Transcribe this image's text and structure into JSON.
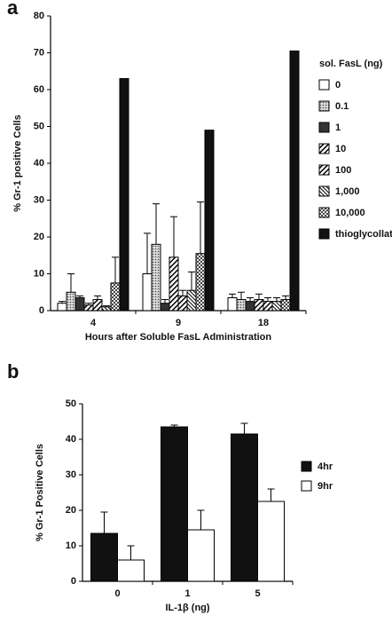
{
  "chart_data": [
    {
      "type": "bar",
      "panel_label": "a",
      "y_label": "% Gr-1 positive Cells",
      "x_label": "Hours after Soluble FasL Administration",
      "legend_title": "sol. FasL (ng)",
      "categories": [
        "4",
        "9",
        "18"
      ],
      "ylim": [
        0,
        80
      ],
      "yticks": [
        0,
        10,
        20,
        30,
        40,
        50,
        60,
        70,
        80
      ],
      "series": [
        {
          "name": "0",
          "color": "#ffffff",
          "pattern": "none",
          "values": [
            2,
            10,
            3.5
          ],
          "errors": [
            0.5,
            11,
            1
          ]
        },
        {
          "name": "0.1",
          "color": "#bbbbbb",
          "pattern": "dots",
          "values": [
            5,
            18,
            3
          ],
          "errors": [
            5,
            11,
            2
          ]
        },
        {
          "name": "1",
          "color": "#333333",
          "pattern": "none",
          "values": [
            3.5,
            2,
            2.5
          ],
          "errors": [
            0.5,
            1,
            1
          ]
        },
        {
          "name": "10",
          "color": "#ffffff",
          "pattern": "hatch",
          "values": [
            1.5,
            14.5,
            3
          ],
          "errors": [
            0.5,
            11,
            1.5
          ]
        },
        {
          "name": "100",
          "color": "#555555",
          "pattern": "hatch",
          "values": [
            3,
            4,
            2.5
          ],
          "errors": [
            1,
            1.5,
            1
          ]
        },
        {
          "name": "1,000",
          "color": "#ffffff",
          "pattern": "hatch-dense",
          "values": [
            1,
            5.5,
            2.5
          ],
          "errors": [
            0.3,
            5,
            1
          ]
        },
        {
          "name": "10,000",
          "color": "#dddddd",
          "pattern": "checker",
          "values": [
            7.5,
            15.5,
            3
          ],
          "errors": [
            7,
            14,
            1
          ]
        },
        {
          "name": "thioglycollate",
          "color": "#111111",
          "pattern": "none",
          "values": [
            63,
            49,
            70.5
          ]
        }
      ]
    },
    {
      "type": "bar",
      "panel_label": "b",
      "y_label": "% Gr-1 Positive Cells",
      "x_label": "IL-1β (ng)",
      "categories": [
        "0",
        "1",
        "5"
      ],
      "ylim": [
        0,
        50
      ],
      "yticks": [
        0,
        10,
        20,
        30,
        40,
        50
      ],
      "series": [
        {
          "name": "4hr",
          "color": "#111111",
          "pattern": "none",
          "values": [
            13.5,
            43.5,
            41.5
          ],
          "errors": [
            6,
            0.5,
            3
          ]
        },
        {
          "name": "9hr",
          "color": "#ffffff",
          "pattern": "none",
          "values": [
            6,
            14.5,
            22.5
          ],
          "errors": [
            4,
            5.5,
            3.5
          ]
        }
      ]
    }
  ]
}
